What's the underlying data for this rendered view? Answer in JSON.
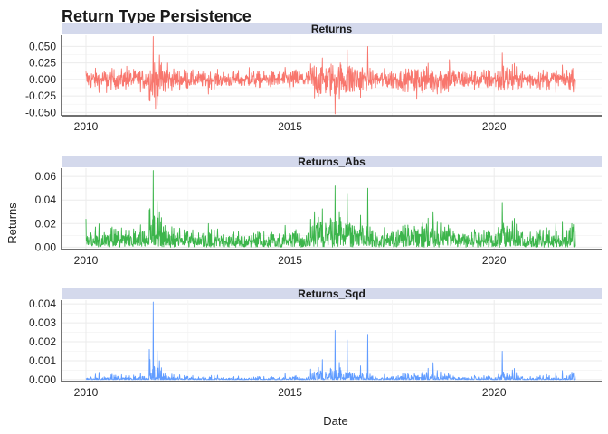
{
  "chart_data": {
    "type": "line",
    "title": "Return Type Persistence",
    "xlabel": "Date",
    "ylabel": "Returns",
    "x_range": [
      "2010-01-04",
      "2021-12-31"
    ],
    "x_ticks": [
      "2010",
      "2015",
      "2020"
    ],
    "grid": true,
    "legend": "none",
    "strip_color": "#d4d9ec",
    "panels": [
      {
        "strip_label": "Returns",
        "color": "#f8766d",
        "y_ticks": [
          "0.050",
          "0.025",
          "0.000",
          "-0.025",
          "-0.050"
        ],
        "ylim": [
          -0.055,
          0.067
        ],
        "series": [
          {
            "x": "2010",
            "y": 0.012
          },
          {
            "x": "2010.5",
            "y": -0.02
          },
          {
            "x": "2011",
            "y": 0.02
          },
          {
            "x": "2011.65",
            "y": 0.065
          },
          {
            "x": "2011.7",
            "y": -0.045
          },
          {
            "x": "2012",
            "y": 0.025
          },
          {
            "x": "2013",
            "y": -0.022
          },
          {
            "x": "2014",
            "y": 0.018
          },
          {
            "x": "2015",
            "y": -0.02
          },
          {
            "x": "2015.6",
            "y": -0.028
          },
          {
            "x": "2016.1",
            "y": -0.052
          },
          {
            "x": "2016.4",
            "y": 0.045
          },
          {
            "x": "2016.9",
            "y": 0.05
          },
          {
            "x": "2018.1",
            "y": -0.03
          },
          {
            "x": "2018.9",
            "y": 0.03
          },
          {
            "x": "2020.2",
            "y": -0.035
          },
          {
            "x": "2020.2",
            "y": 0.04
          },
          {
            "x": "2021.9",
            "y": 0.015
          }
        ]
      },
      {
        "strip_label": "Returns_Abs",
        "color": "#3cb54b",
        "y_ticks": [
          "0.06",
          "0.04",
          "0.02",
          "0.00"
        ],
        "ylim": [
          -0.002,
          0.067
        ],
        "series": [
          {
            "x": "2010",
            "y": 0.024
          },
          {
            "x": "2011.65",
            "y": 0.065
          },
          {
            "x": "2011.8",
            "y": 0.03
          },
          {
            "x": "2013",
            "y": 0.02
          },
          {
            "x": "2015.6",
            "y": 0.03
          },
          {
            "x": "2016.1",
            "y": 0.052
          },
          {
            "x": "2016.4",
            "y": 0.045
          },
          {
            "x": "2016.9",
            "y": 0.05
          },
          {
            "x": "2018.5",
            "y": 0.03
          },
          {
            "x": "2020.2",
            "y": 0.038
          },
          {
            "x": "2021.9",
            "y": 0.02
          }
        ]
      },
      {
        "strip_label": "Returns_Sqd",
        "color": "#619cff",
        "y_ticks": [
          "0.004",
          "0.003",
          "0.002",
          "0.001",
          "0.000"
        ],
        "ylim": [
          -0.0001,
          0.0042
        ],
        "series": [
          {
            "x": "2011.55",
            "y": 0.0016
          },
          {
            "x": "2011.65",
            "y": 0.0041
          },
          {
            "x": "2011.8",
            "y": 0.001
          },
          {
            "x": "2016.1",
            "y": 0.0026
          },
          {
            "x": "2016.4",
            "y": 0.0021
          },
          {
            "x": "2016.9",
            "y": 0.0024
          },
          {
            "x": "2018.5",
            "y": 0.0009
          },
          {
            "x": "2020.2",
            "y": 0.0015
          },
          {
            "x": "2021.9",
            "y": 0.0004
          }
        ]
      }
    ]
  }
}
